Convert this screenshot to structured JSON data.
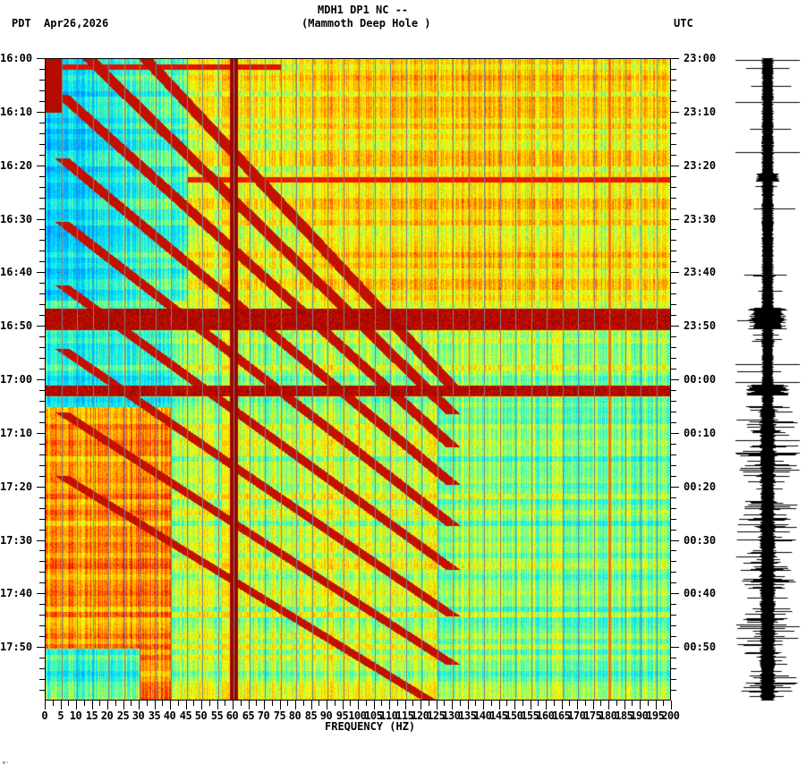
{
  "header": {
    "title": "MDH1 DP1 NC --",
    "subtitle": "(Mammoth Deep Hole )",
    "left_timezone": "PDT",
    "date": "Apr26,2026",
    "right_timezone": "UTC"
  },
  "footer": {
    "mark": "∘‧"
  },
  "colors": {
    "scale": [
      "#0050ff",
      "#00a0ff",
      "#00e6ff",
      "#60ff9f",
      "#ffff00",
      "#ffa500",
      "#ff2000",
      "#8b0000"
    ],
    "gridline": "#808080",
    "trace": "#000000",
    "background": "#ffffff"
  },
  "chart_data": {
    "type": "heatmap",
    "title": "MDH1 DP1 NC -- (Mammoth Deep Hole )",
    "xlabel": "FREQUENCY (HZ)",
    "ylabel_left": "PDT",
    "ylabel_right": "UTC",
    "date": "Apr26,2026",
    "xlim": [
      0,
      200
    ],
    "x_ticks": [
      0,
      5,
      10,
      15,
      20,
      25,
      30,
      35,
      40,
      45,
      50,
      55,
      60,
      65,
      70,
      75,
      80,
      85,
      90,
      95,
      100,
      105,
      110,
      115,
      120,
      125,
      130,
      135,
      140,
      145,
      150,
      155,
      160,
      165,
      170,
      175,
      180,
      185,
      190,
      195,
      200
    ],
    "x_tick_labels": [
      "0",
      "5",
      "10",
      "15",
      "20",
      "25",
      "30",
      "35",
      "40",
      "45",
      "50",
      "55",
      "60",
      "65",
      "70",
      "75",
      "80",
      "85",
      "90",
      "95",
      "100",
      "105",
      "110",
      "115",
      "120",
      "125",
      "130",
      "135",
      "140",
      "145",
      "150",
      "155",
      "160",
      "165",
      "170",
      "175",
      "180",
      "185",
      "190",
      "195",
      "200"
    ],
    "y_range_minutes": [
      0,
      120
    ],
    "y_ticks_left": [
      "16:00",
      "16:10",
      "16:20",
      "16:30",
      "16:40",
      "16:50",
      "17:00",
      "17:10",
      "17:20",
      "17:30",
      "17:40",
      "17:50"
    ],
    "y_ticks_right": [
      "23:00",
      "23:10",
      "23:20",
      "23:30",
      "23:40",
      "23:50",
      "00:00",
      "00:10",
      "00:20",
      "00:30",
      "00:40",
      "00:50"
    ],
    "minor_tick_interval_minutes": 2,
    "grid": "vertical lines every 5 Hz",
    "colorscale": "jet (blue=low power, dark red=high power)",
    "features": [
      {
        "kind": "persistent_line",
        "frequency_hz": 60,
        "description": "strong narrow dark-red line at 60 Hz for full duration"
      },
      {
        "kind": "persistent_line",
        "frequency_hz": 180,
        "description": "faint line near 180 Hz"
      },
      {
        "kind": "broadband_event",
        "time": "16:47-16:50",
        "description": "broadband high-power band across all frequencies"
      },
      {
        "kind": "broadband_event",
        "time": "17:01-17:03",
        "description": "broadband high-power band across all frequencies"
      },
      {
        "kind": "broadband_event",
        "time": "16:22",
        "description": "high-power band from ~45 Hz upward"
      },
      {
        "kind": "low_freq_energy",
        "time": "16:00-16:10",
        "frequency_hz": [
          0,
          5
        ],
        "description": "dark red low-frequency energy"
      },
      {
        "kind": "gliding_harmonics",
        "time": "16:10-17:59",
        "description": "multiple diagonal dark-red harmonics rising in frequency over time (spectral gliding)"
      },
      {
        "kind": "quiet_low_band",
        "time": "16:00-16:45",
        "frequency_hz": [
          0,
          45
        ],
        "description": "predominantly blue/cyan low power"
      },
      {
        "kind": "elevated_low_band",
        "time": "17:05-17:52",
        "frequency_hz": [
          0,
          40
        ],
        "description": "predominantly red/orange high power"
      }
    ],
    "seismogram": {
      "description": "vertical waveform trace alongside spectrogram",
      "events": [
        "16:47-16:50 large burst",
        "17:01-17:03 large burst",
        "16:22 moderate burst"
      ],
      "noise_level_after_17:05": "elevated, many spikes"
    }
  }
}
